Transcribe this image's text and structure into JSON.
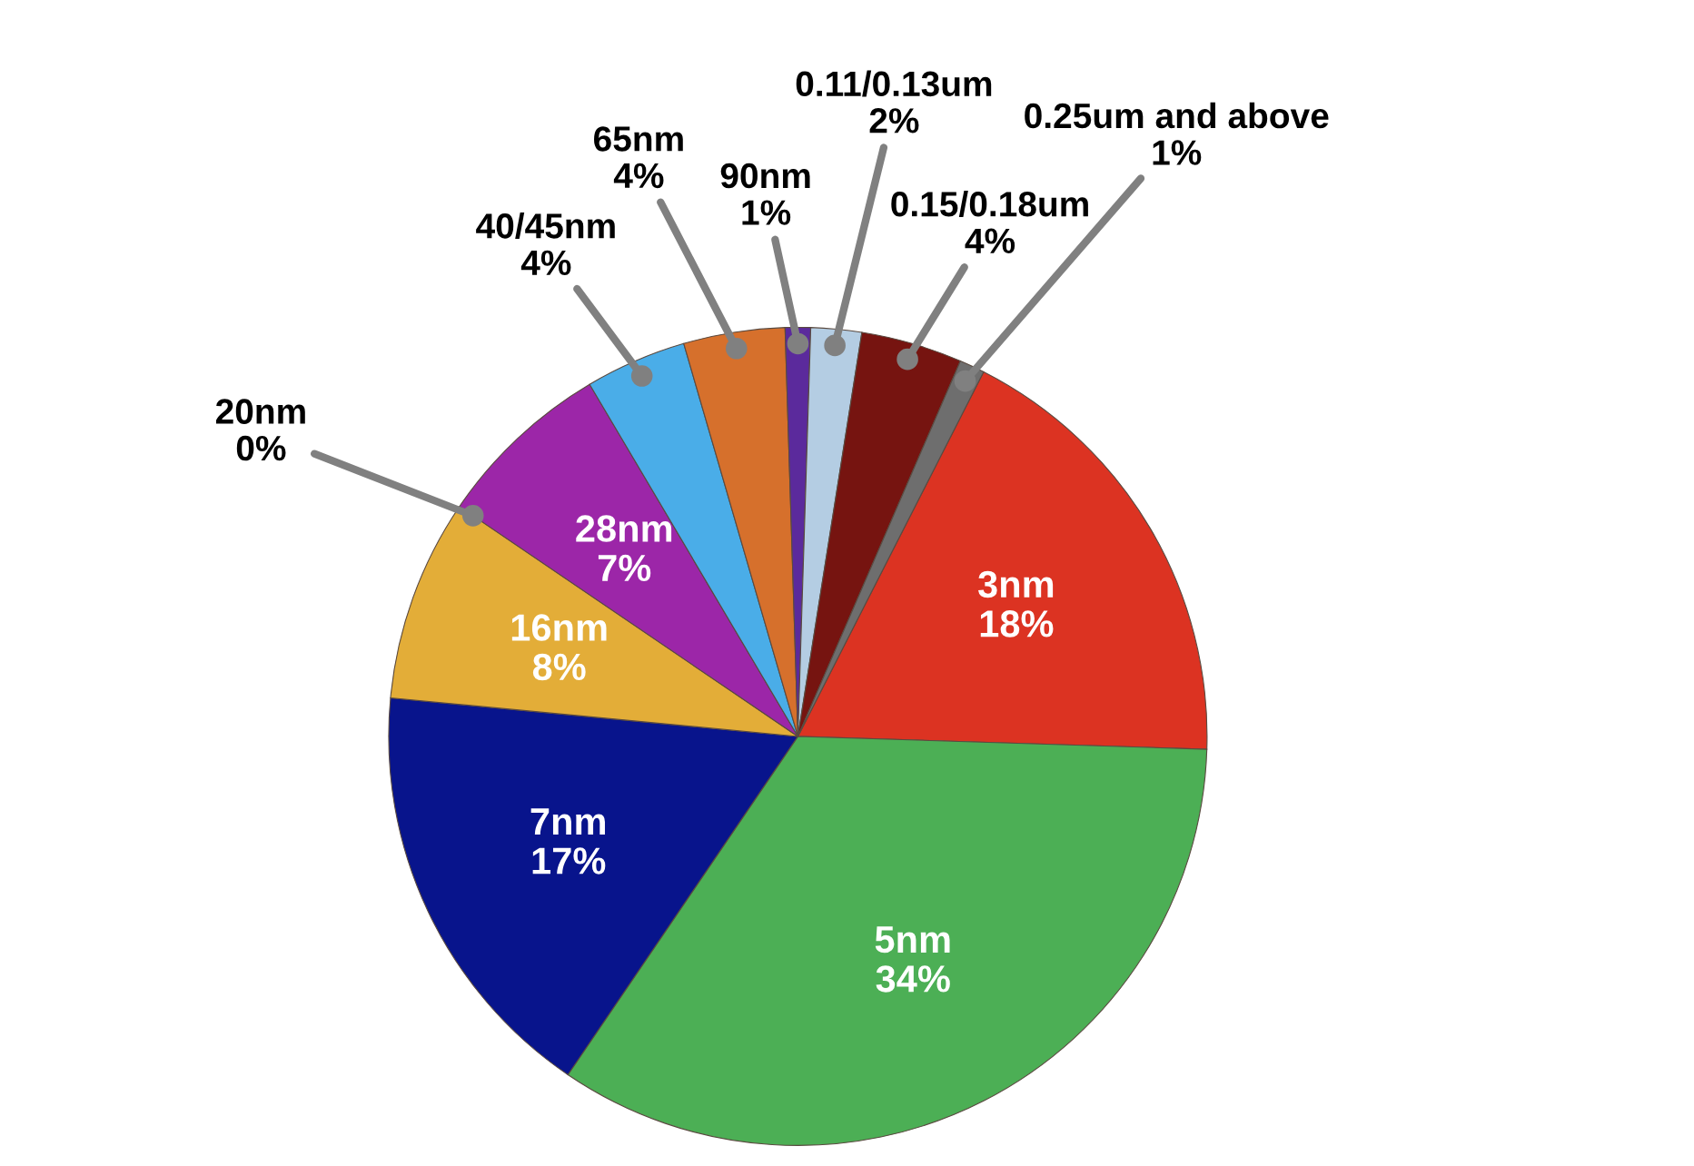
{
  "chart_data": {
    "type": "pie",
    "categories": [
      "3nm",
      "5nm",
      "7nm",
      "16nm",
      "20nm",
      "28nm",
      "40/45nm",
      "65nm",
      "90nm",
      "0.11/0.13um",
      "0.15/0.18um",
      "0.25um and above"
    ],
    "values": [
      18,
      34,
      17,
      8,
      0,
      7,
      4,
      4,
      1,
      2,
      4,
      1
    ],
    "value_labels": [
      "18%",
      "34%",
      "17%",
      "8%",
      "0%",
      "7%",
      "4%",
      "4%",
      "1%",
      "2%",
      "4%",
      "1%"
    ],
    "colors": [
      "#dc3322",
      "#4caf55",
      "#08148c",
      "#e3ad38",
      null,
      "#9c26a8",
      "#4aade8",
      "#d6702c",
      "#5b2a9c",
      "#b4cde3",
      "#761410",
      "#6e6e6e"
    ]
  }
}
